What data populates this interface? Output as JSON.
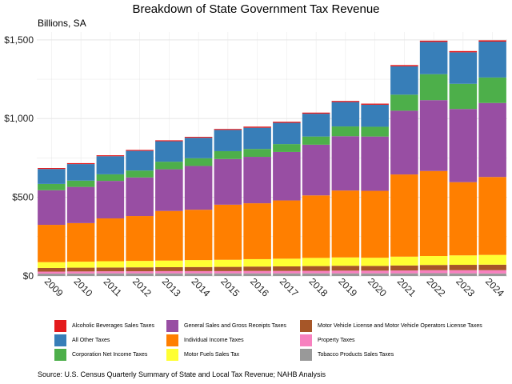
{
  "chart_data": {
    "type": "bar",
    "stacked": true,
    "title": "Breakdown of State Government Tax Revenue",
    "subtitle": "Billions, SA",
    "source": "Source: U.S. Census Quarterly Summary of State and Local Tax Revenue; NAHB Analysis",
    "categories": [
      "2009",
      "2010",
      "2011",
      "2012",
      "2013",
      "2014",
      "2015",
      "2016",
      "2017",
      "2018",
      "2019",
      "2020",
      "2021",
      "2022",
      "2023",
      "2024"
    ],
    "ylim": [
      0,
      1550
    ],
    "yticks": [
      0,
      500,
      1000,
      1500
    ],
    "ytick_labels": [
      "$0",
      "$500",
      "$1,000",
      "$1,500"
    ],
    "grid": true,
    "legend_placement": "bottom",
    "series": [
      {
        "name": "Tobacco Products Sales Taxes",
        "color": "#999999",
        "values": [
          15,
          16,
          17,
          17,
          17,
          17,
          17,
          17,
          17,
          17,
          17,
          17,
          17,
          18,
          17,
          16
        ]
      },
      {
        "name": "Property Taxes",
        "color": "#f781bf",
        "values": [
          13,
          13,
          13,
          13,
          14,
          14,
          14,
          15,
          15,
          16,
          17,
          17,
          18,
          19,
          20,
          21
        ]
      },
      {
        "name": "Motor Vehicle License and Motor Vehicle Operators License Taxes",
        "color": "#a65628",
        "values": [
          23,
          24,
          24,
          25,
          25,
          26,
          27,
          28,
          29,
          30,
          31,
          30,
          32,
          33,
          34,
          35
        ]
      },
      {
        "name": "Motor Fuels Sales Tax",
        "color": "#ffff33",
        "values": [
          37,
          38,
          40,
          41,
          42,
          44,
          45,
          47,
          49,
          52,
          53,
          52,
          56,
          57,
          60,
          62
        ]
      },
      {
        "name": "Individual Income Taxes",
        "color": "#ff7f00",
        "values": [
          237,
          245,
          272,
          285,
          315,
          320,
          350,
          355,
          370,
          397,
          425,
          425,
          522,
          540,
          465,
          495
        ]
      },
      {
        "name": "General Sales and Gross Receipts Taxes",
        "color": "#984ea3",
        "values": [
          220,
          230,
          238,
          245,
          265,
          278,
          290,
          295,
          308,
          322,
          345,
          345,
          405,
          450,
          465,
          470
        ]
      },
      {
        "name": "Corporation Net Income Taxes",
        "color": "#4daf4a",
        "values": [
          40,
          40,
          42,
          44,
          48,
          49,
          50,
          50,
          50,
          52,
          62,
          62,
          102,
          165,
          160,
          162
        ]
      },
      {
        "name": "All Other Taxes",
        "color": "#377eb8",
        "values": [
          95,
          105,
          115,
          125,
          130,
          130,
          135,
          135,
          135,
          145,
          155,
          140,
          180,
          205,
          200,
          228
        ]
      },
      {
        "name": "Alcoholic Beverages Sales Taxes",
        "color": "#e41a1c",
        "values": [
          6,
          6,
          6,
          6,
          6,
          6,
          6,
          7,
          7,
          7,
          7,
          7,
          8,
          8,
          8,
          8
        ]
      }
    ],
    "legend_order": [
      "Alcoholic Beverages Sales Taxes",
      "All Other Taxes",
      "Corporation Net Income Taxes",
      "General Sales and Gross Receipts Taxes",
      "Individual Income Taxes",
      "Motor Fuels Sales Tax",
      "Motor Vehicle License and Motor Vehicle Operators License Taxes",
      "Property Taxes",
      "Tobacco Products Sales Taxes"
    ]
  }
}
